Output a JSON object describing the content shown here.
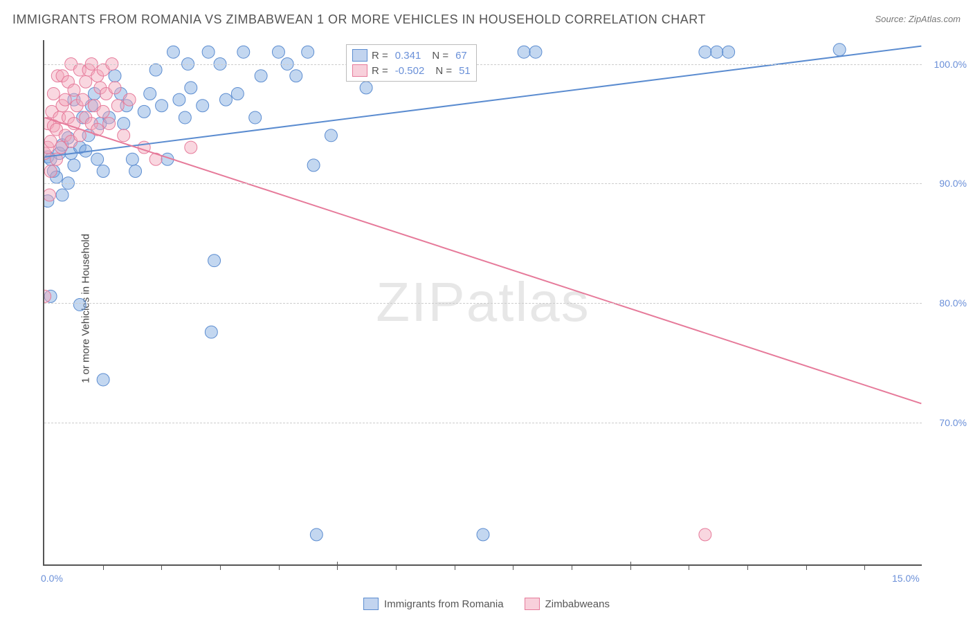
{
  "title": "IMMIGRANTS FROM ROMANIA VS ZIMBABWEAN 1 OR MORE VEHICLES IN HOUSEHOLD CORRELATION CHART",
  "source": "Source: ZipAtlas.com",
  "y_label": "1 or more Vehicles in Household",
  "watermark": {
    "bold": "ZIP",
    "thin": "atlas"
  },
  "chart": {
    "type": "scatter",
    "xlim": [
      0,
      15
    ],
    "ylim": [
      58,
      102
    ],
    "background_color": "#ffffff",
    "grid_color": "#cccccc",
    "axis_color": "#555555",
    "tick_color": "#6a8fd8",
    "title_fontsize": 18,
    "label_fontsize": 15,
    "tick_fontsize": 14,
    "marker_radius": 9,
    "marker_opacity": 0.45,
    "line_width": 2,
    "y_ticks": [
      {
        "value": 70,
        "label": "70.0%"
      },
      {
        "value": 80,
        "label": "80.0%"
      },
      {
        "value": 90,
        "label": "90.0%"
      },
      {
        "value": 100,
        "label": "100.0%"
      }
    ],
    "x_ticks_major": [
      5,
      10
    ],
    "x_ticks_minor": [
      1,
      2,
      3,
      4,
      6,
      7,
      8,
      9,
      11,
      12,
      13,
      14
    ],
    "x_labels": [
      {
        "value": 0,
        "label": "0.0%"
      },
      {
        "value": 15,
        "label": "15.0%"
      }
    ],
    "series": [
      {
        "name": "Immigrants from Romania",
        "color": "#7aa6de",
        "stroke": "#5b8cd0",
        "r": 0.341,
        "n": 67,
        "regression": {
          "x1": 0,
          "y1": 92.2,
          "x2": 15,
          "y2": 101.5
        },
        "points": [
          [
            0.05,
            88.5
          ],
          [
            0.05,
            92.2
          ],
          [
            0.1,
            80.5
          ],
          [
            0.1,
            92.0
          ],
          [
            0.15,
            91.0
          ],
          [
            0.2,
            90.5
          ],
          [
            0.25,
            92.5
          ],
          [
            0.3,
            89.0
          ],
          [
            0.3,
            93.2
          ],
          [
            0.4,
            90.0
          ],
          [
            0.4,
            93.8
          ],
          [
            0.45,
            92.5
          ],
          [
            0.5,
            91.5
          ],
          [
            0.5,
            97.0
          ],
          [
            0.6,
            79.8
          ],
          [
            0.6,
            93.0
          ],
          [
            0.65,
            95.5
          ],
          [
            0.7,
            92.7
          ],
          [
            0.75,
            94.0
          ],
          [
            0.8,
            96.5
          ],
          [
            0.85,
            97.5
          ],
          [
            0.9,
            92.0
          ],
          [
            0.95,
            95.0
          ],
          [
            1.0,
            73.5
          ],
          [
            1.0,
            91.0
          ],
          [
            1.1,
            95.5
          ],
          [
            1.2,
            99.0
          ],
          [
            1.3,
            97.5
          ],
          [
            1.35,
            95.0
          ],
          [
            1.4,
            96.5
          ],
          [
            1.5,
            92.0
          ],
          [
            1.55,
            91.0
          ],
          [
            1.7,
            96.0
          ],
          [
            1.8,
            97.5
          ],
          [
            1.9,
            99.5
          ],
          [
            2.0,
            96.5
          ],
          [
            2.1,
            92.0
          ],
          [
            2.2,
            101.0
          ],
          [
            2.3,
            97.0
          ],
          [
            2.4,
            95.5
          ],
          [
            2.45,
            100.0
          ],
          [
            2.5,
            98.0
          ],
          [
            2.7,
            96.5
          ],
          [
            2.8,
            101.0
          ],
          [
            2.85,
            77.5
          ],
          [
            2.9,
            83.5
          ],
          [
            3.0,
            100.0
          ],
          [
            3.1,
            97.0
          ],
          [
            3.3,
            97.5
          ],
          [
            3.4,
            101.0
          ],
          [
            3.6,
            95.5
          ],
          [
            3.7,
            99.0
          ],
          [
            4.0,
            101.0
          ],
          [
            4.15,
            100.0
          ],
          [
            4.3,
            99.0
          ],
          [
            4.5,
            101.0
          ],
          [
            4.6,
            91.5
          ],
          [
            4.65,
            60.5
          ],
          [
            4.9,
            94.0
          ],
          [
            5.5,
            98.0
          ],
          [
            7.5,
            60.5
          ],
          [
            8.2,
            101.0
          ],
          [
            8.4,
            101.0
          ],
          [
            11.3,
            101.0
          ],
          [
            11.5,
            101.0
          ],
          [
            11.7,
            101.0
          ],
          [
            13.6,
            101.2
          ]
        ]
      },
      {
        "name": "Zimbabweans",
        "color": "#f2a6bb",
        "stroke": "#e67a9a",
        "r": -0.502,
        "n": 51,
        "regression": {
          "x1": 0,
          "y1": 95.5,
          "x2": 15,
          "y2": 71.5
        },
        "points": [
          [
            0.0,
            80.5
          ],
          [
            0.0,
            92.5
          ],
          [
            0.05,
            93.0
          ],
          [
            0.05,
            95.0
          ],
          [
            0.08,
            89.0
          ],
          [
            0.1,
            91.0
          ],
          [
            0.1,
            93.5
          ],
          [
            0.12,
            96.0
          ],
          [
            0.15,
            94.8
          ],
          [
            0.15,
            97.5
          ],
          [
            0.2,
            92.0
          ],
          [
            0.2,
            94.5
          ],
          [
            0.22,
            99.0
          ],
          [
            0.25,
            95.5
          ],
          [
            0.28,
            93.0
          ],
          [
            0.3,
            96.5
          ],
          [
            0.3,
            99.0
          ],
          [
            0.35,
            94.0
          ],
          [
            0.35,
            97.0
          ],
          [
            0.4,
            95.5
          ],
          [
            0.4,
            98.5
          ],
          [
            0.45,
            93.5
          ],
          [
            0.45,
            100.0
          ],
          [
            0.5,
            95.0
          ],
          [
            0.5,
            97.8
          ],
          [
            0.55,
            96.5
          ],
          [
            0.6,
            94.0
          ],
          [
            0.6,
            99.5
          ],
          [
            0.65,
            97.0
          ],
          [
            0.7,
            95.5
          ],
          [
            0.7,
            98.5
          ],
          [
            0.75,
            99.5
          ],
          [
            0.8,
            95.0
          ],
          [
            0.8,
            100.0
          ],
          [
            0.85,
            96.5
          ],
          [
            0.9,
            94.5
          ],
          [
            0.9,
            99.0
          ],
          [
            0.95,
            98.0
          ],
          [
            1.0,
            96.0
          ],
          [
            1.0,
            99.5
          ],
          [
            1.05,
            97.5
          ],
          [
            1.1,
            95.0
          ],
          [
            1.15,
            100.0
          ],
          [
            1.2,
            98.0
          ],
          [
            1.25,
            96.5
          ],
          [
            1.35,
            94.0
          ],
          [
            1.45,
            97.0
          ],
          [
            1.7,
            93.0
          ],
          [
            1.9,
            92.0
          ],
          [
            2.5,
            93.0
          ],
          [
            11.3,
            60.5
          ]
        ]
      }
    ]
  },
  "legend_top": {
    "rows": [
      {
        "swatch": "blue",
        "r_label": "R =",
        "r_val": "0.341",
        "n_label": "N =",
        "n_val": "67"
      },
      {
        "swatch": "pink",
        "r_label": "R =",
        "r_val": "-0.502",
        "n_label": "N =",
        "n_val": "51"
      }
    ]
  },
  "legend_bottom": [
    {
      "swatch": "blue",
      "label": "Immigrants from Romania"
    },
    {
      "swatch": "pink",
      "label": "Zimbabweans"
    }
  ]
}
